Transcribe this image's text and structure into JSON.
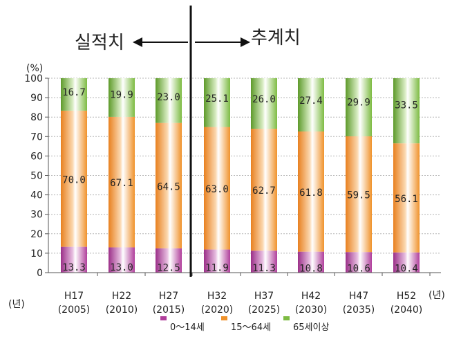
{
  "chart_data": {
    "type": "bar",
    "stacked": true,
    "percent_stacked": true,
    "title": "",
    "ylabel": "(%)",
    "xlabel": "(년)",
    "ylim": [
      0,
      100
    ],
    "yticks": [
      0,
      10,
      20,
      30,
      40,
      50,
      60,
      70,
      80,
      90,
      100
    ],
    "grid": true,
    "legend_position": "bottom",
    "categories": [
      "H17",
      "H22",
      "H27",
      "H32",
      "H37",
      "H42",
      "H47",
      "H52"
    ],
    "category_years": [
      "(2005)",
      "(2010)",
      "(2015)",
      "(2020)",
      "(2025)",
      "(2030)",
      "(2035)",
      "(2040)"
    ],
    "series": [
      {
        "name": "0～14세",
        "color": "#b03e9b",
        "values": [
          13.3,
          13.0,
          12.5,
          11.9,
          11.3,
          10.8,
          10.6,
          10.4
        ],
        "labels": [
          "13.3",
          "13.0",
          "12.5",
          "11.9",
          "11.3",
          "10.8",
          "10.6",
          "10.4"
        ]
      },
      {
        "name": "15～64세",
        "color": "#f0922b",
        "values": [
          70.0,
          67.1,
          64.5,
          63.0,
          62.7,
          61.8,
          59.5,
          56.1
        ],
        "labels": [
          "70.0",
          "67.1",
          "64.5",
          "63.0",
          "62.7",
          "61.8",
          "59.5",
          "56.1"
        ]
      },
      {
        "name": "65세이상",
        "color": "#7dbb42",
        "values": [
          16.7,
          19.9,
          23.0,
          25.1,
          26.0,
          27.4,
          29.9,
          33.5
        ],
        "labels": [
          "16.7",
          "19.9",
          "23.0",
          "25.1",
          "26.0",
          "27.4",
          "29.9",
          "33.5"
        ]
      }
    ],
    "annotations": {
      "actual_label": "실적치",
      "projected_label": "추계치"
    }
  }
}
